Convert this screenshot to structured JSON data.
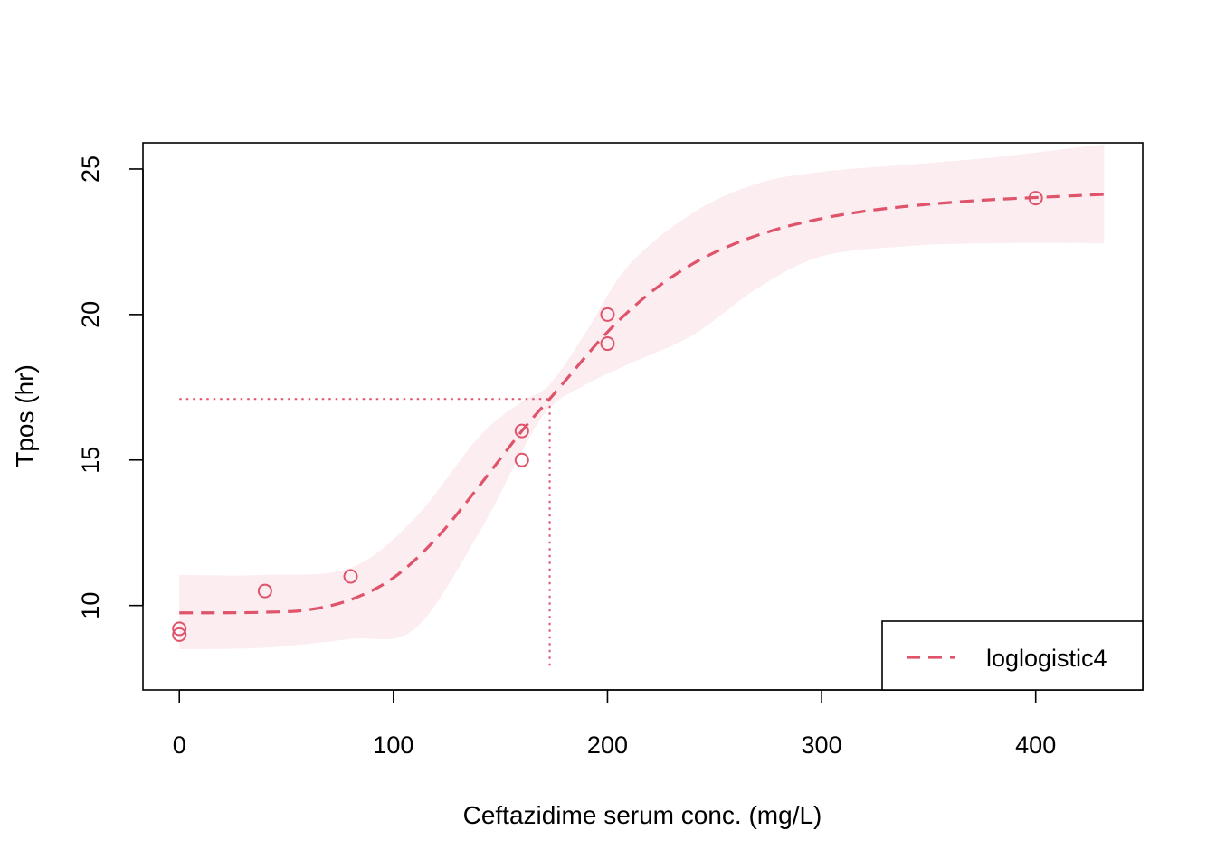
{
  "chart_data": {
    "type": "line",
    "title": "",
    "xlabel": "Ceftazidime serum conc. (mg/L)",
    "ylabel": "Tpos (hr)",
    "xlim": [
      -17,
      450
    ],
    "ylim": [
      7.1,
      25.9
    ],
    "x_ticks": [
      0,
      100,
      200,
      300,
      400
    ],
    "y_ticks": [
      10,
      15,
      20,
      25
    ],
    "x_tick_labels": [
      "0",
      "100",
      "200",
      "300",
      "400"
    ],
    "y_tick_labels": [
      "10",
      "15",
      "20",
      "25"
    ],
    "grid": false,
    "color": "#df536b",
    "points": {
      "x": [
        0,
        0,
        40,
        80,
        160,
        160,
        200,
        200,
        400
      ],
      "y": [
        9.0,
        9.2,
        10.5,
        11.0,
        15.0,
        16.0,
        19.0,
        20.0,
        24.0
      ]
    },
    "series": [
      {
        "name": "loglogistic4",
        "style": "dashed",
        "x": [
          0,
          20,
          40,
          60,
          80,
          100,
          120,
          140,
          160,
          173,
          180,
          200,
          220,
          240,
          260,
          280,
          300,
          320,
          340,
          360,
          380,
          400,
          432
        ],
        "y": [
          9.75,
          9.75,
          9.77,
          9.85,
          10.2,
          10.95,
          12.3,
          14.1,
          16.0,
          17.1,
          17.7,
          19.4,
          20.75,
          21.75,
          22.45,
          22.95,
          23.3,
          23.55,
          23.72,
          23.85,
          23.95,
          24.02,
          24.13
        ]
      }
    ],
    "confidence_band": {
      "x": [
        0,
        40,
        80,
        110,
        140,
        160,
        173,
        190,
        210,
        240,
        270,
        300,
        340,
        380,
        432
      ],
      "upper": [
        11.05,
        11.05,
        11.3,
        13.0,
        15.8,
        17.0,
        17.6,
        19.4,
        21.7,
        23.5,
        24.5,
        24.9,
        25.15,
        25.4,
        25.85
      ],
      "lower": [
        8.5,
        8.55,
        8.85,
        9.2,
        12.5,
        15.3,
        16.8,
        17.6,
        18.3,
        19.3,
        20.9,
        22.0,
        22.35,
        22.45,
        22.45
      ]
    },
    "reference_lines": {
      "x": 173,
      "y": 17.1,
      "style": "dotted"
    },
    "legend": {
      "position": "bottom-right",
      "entries": [
        {
          "label": "loglogistic4",
          "style": "dashed"
        }
      ]
    }
  }
}
